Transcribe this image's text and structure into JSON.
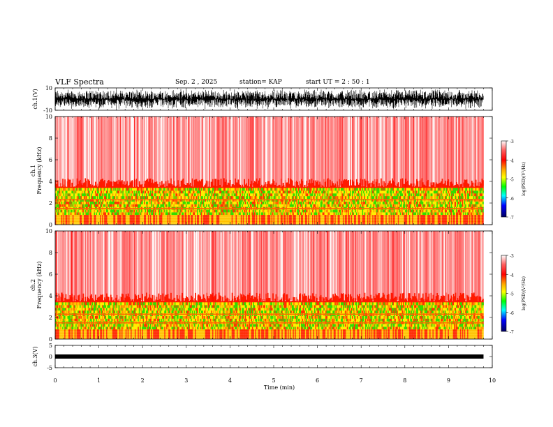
{
  "header": {
    "title": "VLF Spectra",
    "date": "Sep. 2 , 2025",
    "station": "station= KAP",
    "start": "start UT = 2 : 50 : 1"
  },
  "chart_data": [
    {
      "type": "line",
      "name": "ch1-waveform",
      "ylabel": "ch.1(V)",
      "ylim": [
        -10,
        10
      ],
      "yticks": [
        "10",
        "-10"
      ],
      "xlim": [
        0,
        10
      ],
      "data_span_min": [
        0,
        9.8
      ]
    },
    {
      "type": "heatmap",
      "name": "ch1-spectrogram",
      "ylabel": "ch.1 Frequency (kHz)",
      "ylim": [
        0,
        10
      ],
      "yticks": [
        "0",
        "2",
        "4",
        "6",
        "8",
        "10"
      ],
      "xlim": [
        0,
        10
      ],
      "bands_khz": [
        {
          "from": 0,
          "to": 1.0,
          "level": "mixed"
        },
        {
          "from": 1.0,
          "to": 3.5,
          "level": "green-yellow"
        },
        {
          "from": 3.5,
          "to": 10,
          "level": "red"
        }
      ]
    },
    {
      "type": "heatmap",
      "name": "ch2-spectrogram",
      "ylabel": "ch.2 Frequency (kHz)",
      "ylim": [
        0,
        10
      ],
      "yticks": [
        "0",
        "2",
        "4",
        "6",
        "8",
        "10"
      ],
      "xlim": [
        0,
        10
      ],
      "bands_khz": [
        {
          "from": 0,
          "to": 1.0,
          "level": "mixed"
        },
        {
          "from": 1.0,
          "to": 3.5,
          "level": "green-yellow"
        },
        {
          "from": 3.5,
          "to": 10,
          "level": "red"
        }
      ]
    },
    {
      "type": "line",
      "name": "ch3-waveform",
      "ylabel": "ch.3(V)",
      "ylim": [
        -5,
        5
      ],
      "yticks": [
        "5",
        "0",
        "-5"
      ],
      "xlim": [
        0,
        10
      ],
      "level_v": 0
    }
  ],
  "xaxis": {
    "label": "Time (min)",
    "ticks": [
      "0",
      "1",
      "2",
      "3",
      "4",
      "5",
      "6",
      "7",
      "8",
      "9",
      "10"
    ]
  },
  "colorbar": {
    "label": "log(PSD)(V²/Hz)",
    "ticks": [
      "-3",
      "-4",
      "-5",
      "-6",
      "-7"
    ],
    "colors": [
      "#ffffff",
      "#ff0000",
      "#ffaa00",
      "#ffff00",
      "#00ff00",
      "#00ffff",
      "#0000ff",
      "#000080"
    ]
  }
}
